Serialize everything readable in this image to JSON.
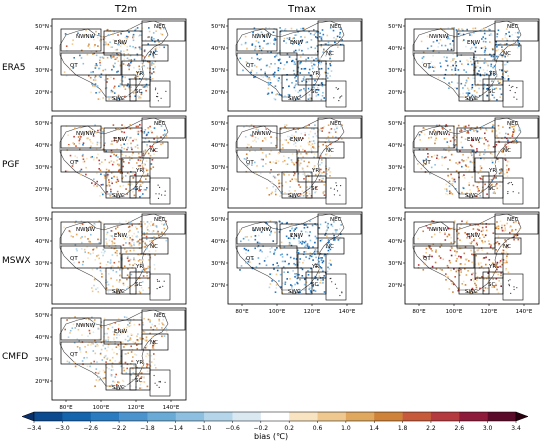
{
  "columns": [
    "T2m",
    "Tmax",
    "Tmin"
  ],
  "rows": [
    "ERA5",
    "PGF",
    "MSWX",
    "CMFD"
  ],
  "region_labels": [
    "NWNW",
    "ENW",
    "NEC",
    "NC",
    "QT",
    "YR",
    "SWC",
    "SC"
  ],
  "lat_ticks": [
    "50°N",
    "40°N",
    "30°N",
    "20°N"
  ],
  "lon_ticks": [
    "80°E",
    "100°E",
    "120°E",
    "140°E"
  ],
  "colorbar": {
    "label": "bias (℃)",
    "ticks": [
      "−3.4",
      "−3.0",
      "−2.6",
      "−2.2",
      "−1.8",
      "−1.4",
      "−1.0",
      "−0.6",
      "−0.2",
      "0.2",
      "0.6",
      "1.0",
      "1.4",
      "1.8",
      "2.2",
      "2.6",
      "3.0",
      "3.4"
    ],
    "colors": [
      "#08306b",
      "#0b4a8f",
      "#1464ad",
      "#2b7bc0",
      "#4a93cc",
      "#6aaad6",
      "#8dc0e0",
      "#b4d5ea",
      "#dae8f2",
      "#ffffff",
      "#f8e4c0",
      "#eec88f",
      "#e0a75f",
      "#cf8239",
      "#c65a3b",
      "#b53a3f",
      "#8e1b3a",
      "#5c0a29",
      "#2a0010"
    ]
  },
  "panels": [
    {
      "row": "ERA5",
      "col": "T2m",
      "tone": "mixed-warm"
    },
    {
      "row": "ERA5",
      "col": "Tmax",
      "tone": "cold"
    },
    {
      "row": "ERA5",
      "col": "Tmin",
      "tone": "mixed"
    },
    {
      "row": "PGF",
      "col": "T2m",
      "tone": "warm"
    },
    {
      "row": "PGF",
      "col": "Tmax",
      "tone": "warm-light"
    },
    {
      "row": "PGF",
      "col": "Tmin",
      "tone": "warm"
    },
    {
      "row": "MSWX",
      "col": "T2m",
      "tone": "warm-light"
    },
    {
      "row": "MSWX",
      "col": "Tmax",
      "tone": "cold"
    },
    {
      "row": "MSWX",
      "col": "Tmin",
      "tone": "hot"
    },
    {
      "row": "CMFD",
      "col": "T2m",
      "tone": "warm-light"
    }
  ]
}
